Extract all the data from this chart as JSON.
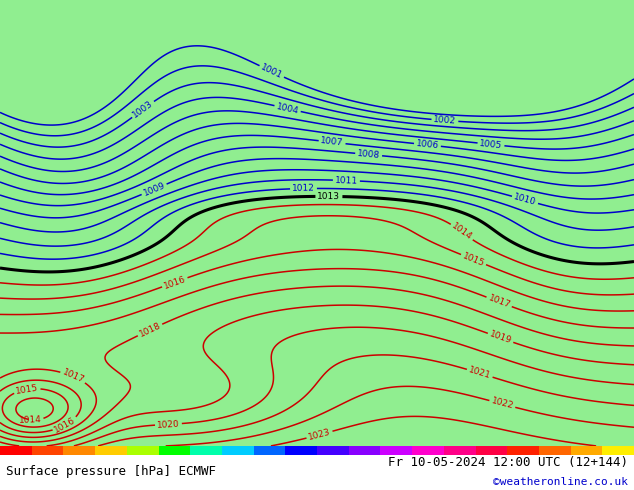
{
  "title_left": "Surface pressure [hPa] ECMWF",
  "title_right": "Fr 10-05-2024 12:00 UTC (12+144)",
  "credit": "©weatheronline.co.uk",
  "bg_color": "#90ee90",
  "contour_blue": "#0000cc",
  "contour_red": "#cc0000",
  "contour_black": "#000000",
  "figsize": [
    6.34,
    4.9
  ],
  "dpi": 100,
  "font_size_bottom": 9,
  "font_size_credit": 8,
  "strip_colors": [
    "#ff0000",
    "#ff4400",
    "#ff8800",
    "#ffcc00",
    "#aaff00",
    "#00ff00",
    "#00ffaa",
    "#00ccff",
    "#0066ff",
    "#0000ff",
    "#4400ff",
    "#8800ff",
    "#cc00ff",
    "#ff00cc",
    "#ff0088",
    "#ff0044",
    "#ff2200",
    "#ff6600",
    "#ffaa00",
    "#ffee00"
  ]
}
